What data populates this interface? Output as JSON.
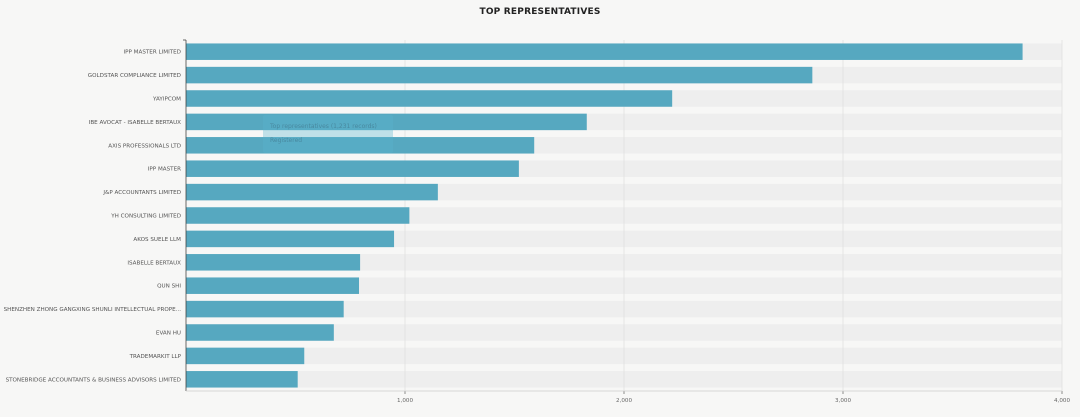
{
  "chart_data": {
    "type": "bar",
    "orientation": "horizontal",
    "title": "TOP REPRESENTATIVES",
    "categories": [
      "IPP MASTER LIMITED",
      "GOLDSTAR COMPLIANCE LIMITED",
      "YAYIPCOM",
      "IBE AVOCAT - ISABELLE BERTAUX",
      "AXIS PROFESSIONALS LTD",
      "IPP MASTER",
      "J&P ACCOUNTANTS LIMITED",
      "YH CONSULTING LIMITED",
      "AKOS SUELE LLM",
      "ISABELLE BERTAUX",
      "QUN SHI",
      "SHENZHEN ZHONG GANGXING SHUNLI INTELLECTUAL PROPE...",
      "EVAN HU",
      "TRADEMARKIT LLP",
      "STONEBRIDGE ACCOUNTANTS & BUSINESS ADVISORS LIMITED"
    ],
    "values": [
      3820,
      2860,
      2220,
      1830,
      1590,
      1520,
      1150,
      1020,
      950,
      795,
      790,
      720,
      675,
      540,
      510
    ],
    "xlim": [
      0,
      4000
    ],
    "xticks": [
      1000,
      2000,
      3000,
      4000
    ],
    "xtick_labels": [
      "1,000",
      "2,000",
      "3,000",
      "4,000"
    ],
    "grid": true,
    "colors": {
      "bar": "#56a8c0",
      "track": "#eeeeee",
      "grid": "#e0e0e0",
      "axis": "#444444"
    }
  },
  "tooltip": {
    "line1": "Top representatives (1,231 records)",
    "line2": "Registered"
  }
}
